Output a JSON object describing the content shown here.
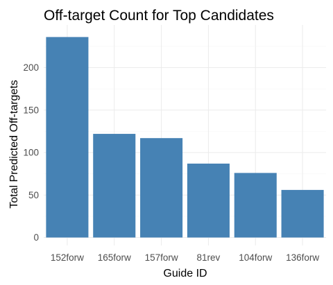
{
  "chart_data": {
    "type": "bar",
    "title": "Off-target Count for Top Candidates",
    "xlabel": "Guide ID",
    "ylabel": "Total Predicted Off-targets",
    "categories": [
      "152forw",
      "165forw",
      "157forw",
      "81rev",
      "104forw",
      "136forw"
    ],
    "values": [
      236,
      122,
      117,
      87,
      76,
      56
    ],
    "ylim": [
      0,
      248
    ],
    "yticks": [
      0,
      50,
      100,
      150,
      200
    ],
    "grid": true,
    "legend": "none",
    "bar_color": "#4682B4"
  }
}
